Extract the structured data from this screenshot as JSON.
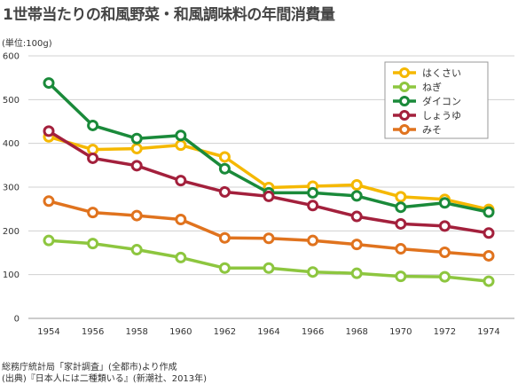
{
  "chart_data": {
    "type": "line",
    "title": "1世帯当たりの和風野菜・和風調味料の年間消費量",
    "unit_label": "(単位:100g)",
    "x": [
      1954,
      1956,
      1958,
      1960,
      1962,
      1964,
      1966,
      1968,
      1970,
      1972,
      1974
    ],
    "x_tick_labels": [
      "1954",
      "1956",
      "1958",
      "1960",
      "1962",
      "1964",
      "1966",
      "1968",
      "1970",
      "1972",
      "1974"
    ],
    "ylim": [
      0,
      600
    ],
    "y_ticks": [
      0,
      100,
      200,
      300,
      400,
      500,
      600
    ],
    "grid": true,
    "legend_position": "top-right",
    "series": [
      {
        "name": "はくさい",
        "color": "#f5b800",
        "values": [
          415,
          386,
          388,
          396,
          369,
          299,
          302,
          305,
          278,
          272,
          249
        ]
      },
      {
        "name": "ねぎ",
        "color": "#8dc63f",
        "values": [
          178,
          171,
          157,
          139,
          115,
          115,
          106,
          103,
          96,
          95,
          85
        ]
      },
      {
        "name": "ダイコン",
        "color": "#1a8a3a",
        "values": [
          538,
          441,
          411,
          418,
          342,
          287,
          287,
          280,
          254,
          264,
          243
        ]
      },
      {
        "name": "しょうゆ",
        "color": "#a3203c",
        "values": [
          428,
          366,
          349,
          315,
          289,
          279,
          258,
          233,
          216,
          211,
          195
        ]
      },
      {
        "name": "みそ",
        "color": "#e0731e",
        "values": [
          268,
          242,
          235,
          226,
          184,
          183,
          178,
          169,
          159,
          151,
          143
        ]
      }
    ]
  },
  "source": {
    "line1": "総務庁統計局「家計調査」(全都市)より作成",
    "line2": "(出典)『日本人には二種類いる』(新潮社、2013年)"
  }
}
